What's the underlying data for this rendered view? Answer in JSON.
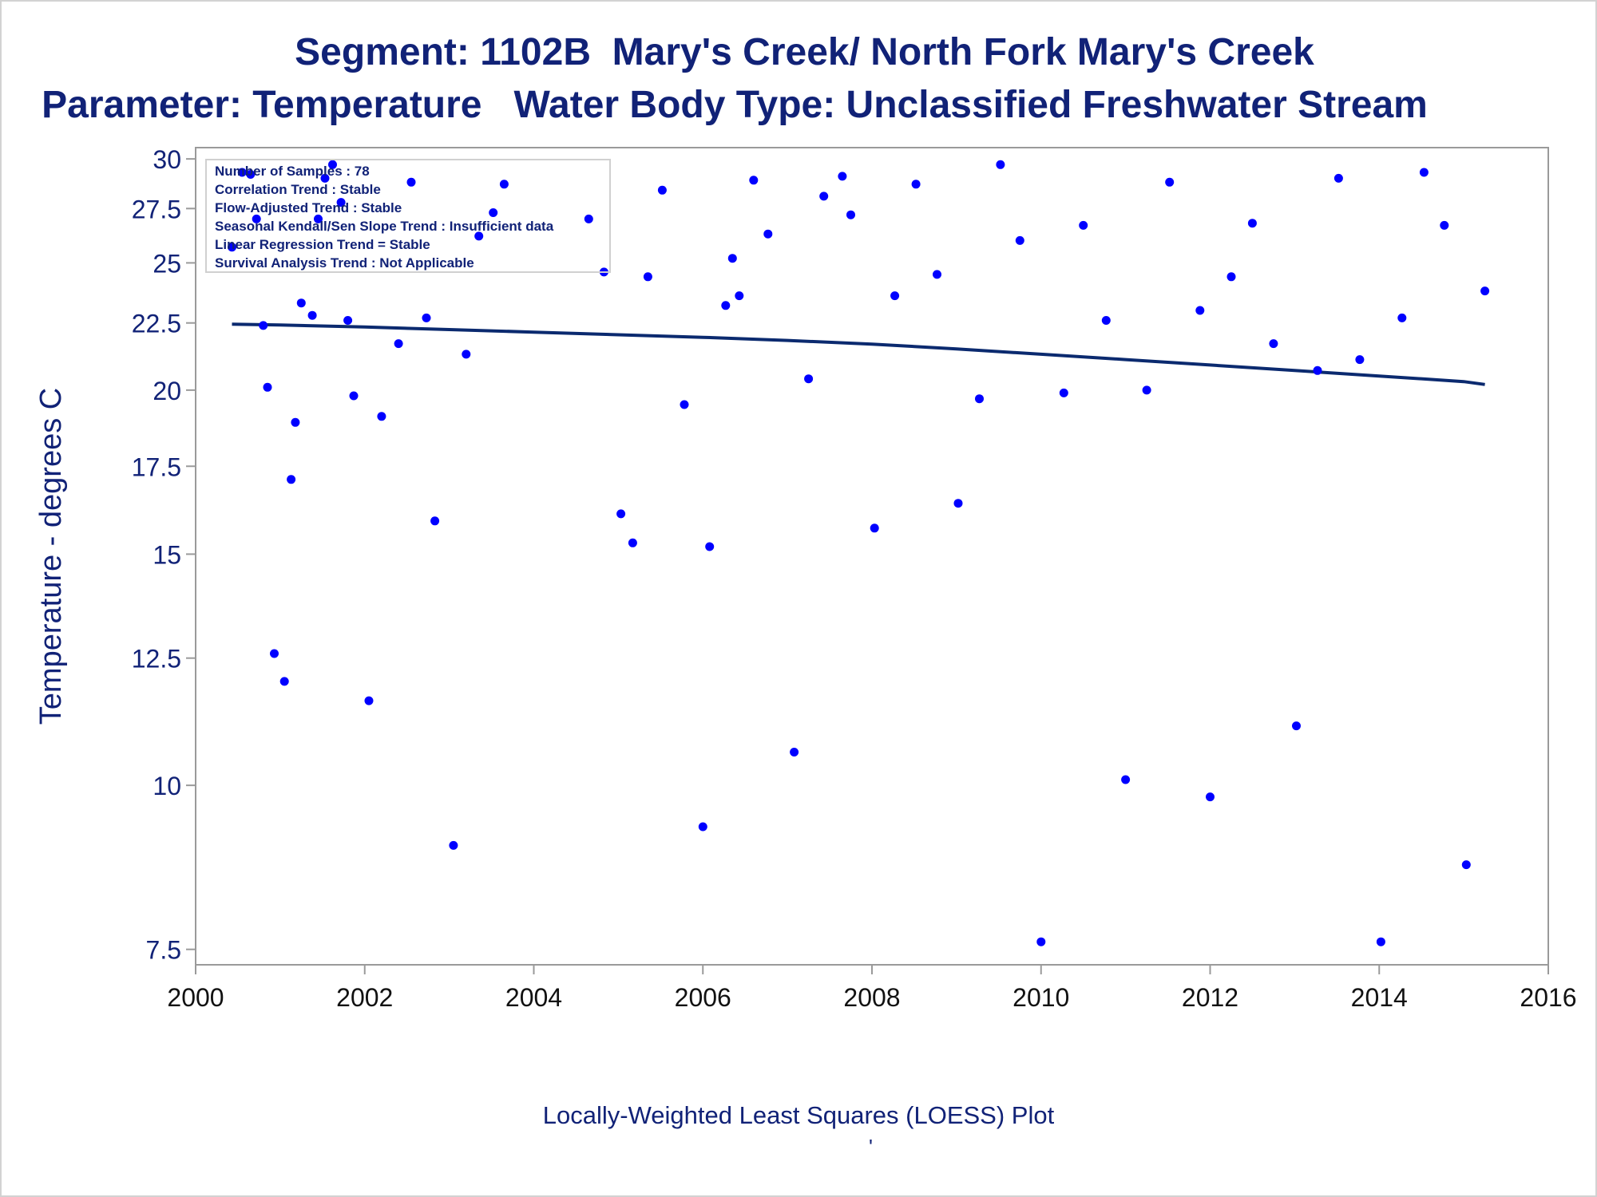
{
  "titles": {
    "line1": "Segment: 1102B  Mary's Creek/ North Fork Mary's Creek",
    "line2": "Parameter: Temperature   Water Body Type: Unclassified Freshwater Stream"
  },
  "footnote": {
    "text": "Locally-Weighted Least Squares (LOESS) Plot",
    "mark": "'"
  },
  "info_box": [
    "Number of Samples : 78",
    "Correlation Trend : Stable",
    "Flow-Adjusted Trend : Stable",
    "Seasonal Kendall/Sen Slope Trend : Insufficient data",
    "Linear Regression Trend = Stable",
    "Survival Analysis Trend : Not Applicable"
  ],
  "colors": {
    "text": "#112277",
    "points": "#0000ff",
    "loess_line": "#0b2a6f",
    "axis": "#9a9a9a"
  },
  "chart_data": {
    "type": "scatter",
    "title": "Segment: 1102B  Mary's Creek/ North Fork Mary's Creek",
    "subtitle": "Parameter: Temperature   Water Body Type: Unclassified Freshwater Stream",
    "xlabel": "",
    "ylabel": "Temperature - degrees C",
    "x_scale": "time (year)",
    "y_scale": "log",
    "xlim": [
      2000,
      2016
    ],
    "ylim": [
      7.3,
      30.6
    ],
    "xticks": [
      "2000",
      "2002",
      "2004",
      "2006",
      "2008",
      "2010",
      "2012",
      "2014",
      "2016"
    ],
    "yticks": [
      "7.5",
      "10",
      "12.5",
      "15",
      "17.5",
      "20",
      "22.5",
      "25",
      "27.5",
      "30"
    ],
    "grid": false,
    "legend": "none",
    "points": [
      [
        2000.43,
        25.7
      ],
      [
        2000.55,
        29.3
      ],
      [
        2000.65,
        29.2
      ],
      [
        2000.72,
        27.0
      ],
      [
        2000.8,
        22.4
      ],
      [
        2000.85,
        20.1
      ],
      [
        2000.93,
        12.6
      ],
      [
        2001.05,
        12.0
      ],
      [
        2001.13,
        17.1
      ],
      [
        2001.18,
        18.9
      ],
      [
        2001.25,
        23.3
      ],
      [
        2001.38,
        22.8
      ],
      [
        2001.45,
        27.0
      ],
      [
        2001.53,
        29.0
      ],
      [
        2001.62,
        29.7
      ],
      [
        2001.72,
        27.8
      ],
      [
        2001.8,
        22.6
      ],
      [
        2001.87,
        19.8
      ],
      [
        2002.05,
        11.6
      ],
      [
        2002.2,
        19.1
      ],
      [
        2002.4,
        21.7
      ],
      [
        2002.55,
        28.8
      ],
      [
        2002.73,
        22.7
      ],
      [
        2002.83,
        15.9
      ],
      [
        2003.05,
        9.0
      ],
      [
        2003.2,
        21.3
      ],
      [
        2003.35,
        26.2
      ],
      [
        2003.52,
        27.3
      ],
      [
        2003.65,
        28.7
      ],
      [
        2004.65,
        27.0
      ],
      [
        2004.83,
        24.6
      ],
      [
        2005.03,
        16.1
      ],
      [
        2005.17,
        15.3
      ],
      [
        2005.35,
        24.4
      ],
      [
        2005.52,
        28.4
      ],
      [
        2005.78,
        19.5
      ],
      [
        2006.0,
        9.3
      ],
      [
        2006.08,
        15.2
      ],
      [
        2006.27,
        23.2
      ],
      [
        2006.35,
        25.2
      ],
      [
        2006.43,
        23.6
      ],
      [
        2006.6,
        28.9
      ],
      [
        2006.77,
        26.3
      ],
      [
        2007.08,
        10.6
      ],
      [
        2007.25,
        20.4
      ],
      [
        2007.43,
        28.1
      ],
      [
        2007.65,
        29.1
      ],
      [
        2007.75,
        27.2
      ],
      [
        2008.03,
        15.7
      ],
      [
        2008.27,
        23.6
      ],
      [
        2008.52,
        28.7
      ],
      [
        2008.77,
        24.5
      ],
      [
        2009.02,
        16.4
      ],
      [
        2009.27,
        19.7
      ],
      [
        2009.52,
        29.7
      ],
      [
        2009.75,
        26.0
      ],
      [
        2010.0,
        7.6
      ],
      [
        2010.27,
        19.9
      ],
      [
        2010.5,
        26.7
      ],
      [
        2010.77,
        22.6
      ],
      [
        2011.0,
        10.1
      ],
      [
        2011.25,
        20.0
      ],
      [
        2011.52,
        28.8
      ],
      [
        2011.88,
        23.0
      ],
      [
        2012.0,
        9.8
      ],
      [
        2012.25,
        24.4
      ],
      [
        2012.5,
        26.8
      ],
      [
        2012.75,
        21.7
      ],
      [
        2013.02,
        11.1
      ],
      [
        2013.27,
        20.7
      ],
      [
        2013.52,
        29.0
      ],
      [
        2013.77,
        21.1
      ],
      [
        2014.02,
        7.6
      ],
      [
        2014.27,
        22.7
      ],
      [
        2014.53,
        29.3
      ],
      [
        2014.77,
        26.7
      ],
      [
        2015.03,
        8.7
      ],
      [
        2015.25,
        23.8
      ]
    ],
    "loess_line": {
      "x": [
        2000.43,
        2001,
        2002,
        2003,
        2004,
        2005,
        2006,
        2007,
        2008,
        2009,
        2010,
        2011,
        2012,
        2013,
        2014,
        2015,
        2015.25
      ],
      "y": [
        22.45,
        22.42,
        22.34,
        22.24,
        22.14,
        22.04,
        21.94,
        21.82,
        21.68,
        21.5,
        21.3,
        21.1,
        20.9,
        20.7,
        20.5,
        20.3,
        20.2
      ]
    }
  }
}
